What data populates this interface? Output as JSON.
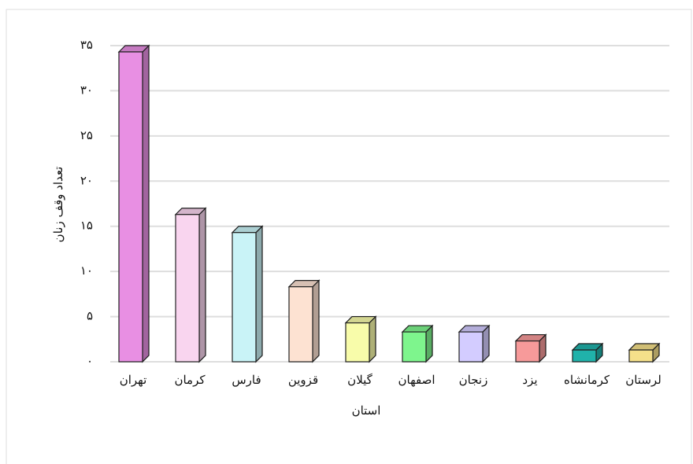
{
  "chart_data": {
    "type": "bar3d",
    "x_label": "استان",
    "y_label": "تعداد وقف زنان",
    "categories": [
      "تهران",
      "کرمان",
      "فارس",
      "قزوین",
      "گیلان",
      "اصفهان",
      "زنجان",
      "یزد",
      "کرمانشاه",
      "لرستان"
    ],
    "values": [
      35,
      17,
      15,
      9,
      5,
      4,
      4,
      3,
      2,
      2
    ],
    "colors": [
      "#e88fe3",
      "#f9d5ef",
      "#c9f3f7",
      "#fde2d2",
      "#f8fcaa",
      "#7ef58d",
      "#d3ccff",
      "#f79a9a",
      "#20b2aa",
      "#f5e08a"
    ],
    "ylim": [
      0,
      35
    ],
    "yticks": [
      {
        "value": 0,
        "label": "۰"
      },
      {
        "value": 5,
        "label": "۵"
      },
      {
        "value": 10,
        "label": "۱۰"
      },
      {
        "value": 15,
        "label": "۱۵"
      },
      {
        "value": 20,
        "label": "۲۰"
      },
      {
        "value": 25,
        "label": "۲۵"
      },
      {
        "value": 30,
        "label": "۳۰"
      },
      {
        "value": 35,
        "label": "۳۵"
      }
    ],
    "grid": true
  }
}
